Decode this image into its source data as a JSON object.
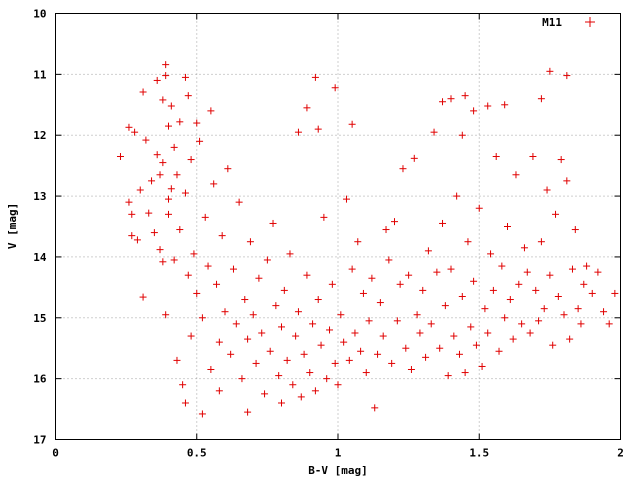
{
  "chart_data": {
    "type": "scatter",
    "title": "",
    "xlabel": "B-V [mag]",
    "ylabel": "V [mag]",
    "xlim": [
      0,
      2
    ],
    "ylim": [
      17,
      10
    ],
    "y_inverted": true,
    "grid": true,
    "legend_position": "top-right",
    "x_ticks": [
      "0",
      "0.5",
      "1",
      "1.5",
      "2"
    ],
    "y_ticks": [
      "10",
      "11",
      "12",
      "13",
      "14",
      "15",
      "16",
      "17"
    ],
    "marker_color": "#e00000",
    "series": [
      {
        "name": "M11",
        "marker": "plus",
        "points": [
          [
            0.23,
            12.35
          ],
          [
            0.26,
            11.87
          ],
          [
            0.28,
            11.95
          ],
          [
            0.26,
            13.1
          ],
          [
            0.27,
            13.3
          ],
          [
            0.27,
            13.65
          ],
          [
            0.29,
            13.72
          ],
          [
            0.3,
            12.9
          ],
          [
            0.31,
            11.29
          ],
          [
            0.31,
            14.66
          ],
          [
            0.32,
            12.08
          ],
          [
            0.33,
            13.28
          ],
          [
            0.34,
            12.75
          ],
          [
            0.35,
            13.6
          ],
          [
            0.36,
            12.32
          ],
          [
            0.36,
            11.1
          ],
          [
            0.37,
            12.65
          ],
          [
            0.37,
            13.88
          ],
          [
            0.38,
            11.42
          ],
          [
            0.38,
            12.45
          ],
          [
            0.38,
            14.08
          ],
          [
            0.39,
            10.84
          ],
          [
            0.39,
            11.02
          ],
          [
            0.39,
            14.95
          ],
          [
            0.4,
            11.85
          ],
          [
            0.4,
            13.3
          ],
          [
            0.4,
            13.05
          ],
          [
            0.41,
            12.88
          ],
          [
            0.41,
            11.52
          ],
          [
            0.42,
            12.2
          ],
          [
            0.42,
            14.05
          ],
          [
            0.43,
            12.65
          ],
          [
            0.43,
            15.7
          ],
          [
            0.44,
            11.78
          ],
          [
            0.44,
            13.55
          ],
          [
            0.45,
            16.1
          ],
          [
            0.46,
            16.4
          ],
          [
            0.46,
            11.05
          ],
          [
            0.46,
            12.95
          ],
          [
            0.47,
            11.35
          ],
          [
            0.47,
            14.3
          ],
          [
            0.48,
            15.3
          ],
          [
            0.48,
            12.4
          ],
          [
            0.49,
            13.95
          ],
          [
            0.5,
            11.8
          ],
          [
            0.5,
            14.6
          ],
          [
            0.51,
            12.1
          ],
          [
            0.52,
            15.0
          ],
          [
            0.52,
            16.58
          ],
          [
            0.53,
            13.35
          ],
          [
            0.54,
            14.15
          ],
          [
            0.55,
            11.6
          ],
          [
            0.55,
            15.85
          ],
          [
            0.56,
            12.8
          ],
          [
            0.57,
            14.45
          ],
          [
            0.58,
            15.4
          ],
          [
            0.58,
            16.2
          ],
          [
            0.59,
            13.65
          ],
          [
            0.6,
            14.9
          ],
          [
            0.61,
            12.55
          ],
          [
            0.62,
            15.6
          ],
          [
            0.63,
            14.2
          ],
          [
            0.64,
            15.1
          ],
          [
            0.65,
            13.1
          ],
          [
            0.66,
            16.0
          ],
          [
            0.67,
            14.7
          ],
          [
            0.68,
            15.35
          ],
          [
            0.68,
            16.55
          ],
          [
            0.69,
            13.75
          ],
          [
            0.7,
            14.95
          ],
          [
            0.71,
            15.75
          ],
          [
            0.72,
            14.35
          ],
          [
            0.73,
            15.25
          ],
          [
            0.74,
            16.25
          ],
          [
            0.75,
            14.05
          ],
          [
            0.76,
            15.55
          ],
          [
            0.77,
            13.45
          ],
          [
            0.78,
            14.8
          ],
          [
            0.79,
            15.95
          ],
          [
            0.8,
            15.15
          ],
          [
            0.8,
            16.4
          ],
          [
            0.81,
            14.55
          ],
          [
            0.82,
            15.7
          ],
          [
            0.83,
            13.95
          ],
          [
            0.84,
            16.1
          ],
          [
            0.85,
            15.3
          ],
          [
            0.86,
            11.95
          ],
          [
            0.86,
            14.9
          ],
          [
            0.87,
            16.3
          ],
          [
            0.88,
            15.6
          ],
          [
            0.89,
            11.55
          ],
          [
            0.89,
            14.3
          ],
          [
            0.9,
            15.9
          ],
          [
            0.91,
            15.1
          ],
          [
            0.92,
            11.05
          ],
          [
            0.92,
            16.2
          ],
          [
            0.93,
            14.7
          ],
          [
            0.93,
            11.9
          ],
          [
            0.94,
            15.45
          ],
          [
            0.95,
            13.35
          ],
          [
            0.96,
            16.0
          ],
          [
            0.97,
            15.2
          ],
          [
            0.98,
            14.45
          ],
          [
            0.99,
            15.75
          ],
          [
            0.99,
            11.22
          ],
          [
            1.0,
            16.1
          ],
          [
            1.01,
            14.95
          ],
          [
            1.02,
            15.4
          ],
          [
            1.03,
            13.05
          ],
          [
            1.04,
            15.7
          ],
          [
            1.05,
            11.82
          ],
          [
            1.05,
            14.2
          ],
          [
            1.06,
            15.25
          ],
          [
            1.07,
            13.75
          ],
          [
            1.08,
            15.55
          ],
          [
            1.09,
            14.6
          ],
          [
            1.1,
            15.9
          ],
          [
            1.11,
            15.05
          ],
          [
            1.12,
            14.35
          ],
          [
            1.13,
            16.48
          ],
          [
            1.14,
            15.6
          ],
          [
            1.15,
            14.75
          ],
          [
            1.16,
            15.3
          ],
          [
            1.17,
            13.55
          ],
          [
            1.18,
            14.05
          ],
          [
            1.19,
            15.75
          ],
          [
            1.2,
            13.42
          ],
          [
            1.21,
            15.05
          ],
          [
            1.22,
            14.45
          ],
          [
            1.23,
            12.55
          ],
          [
            1.24,
            15.5
          ],
          [
            1.25,
            14.3
          ],
          [
            1.26,
            15.85
          ],
          [
            1.27,
            12.38
          ],
          [
            1.28,
            14.95
          ],
          [
            1.29,
            15.25
          ],
          [
            1.3,
            14.55
          ],
          [
            1.31,
            15.65
          ],
          [
            1.32,
            13.9
          ],
          [
            1.33,
            15.1
          ],
          [
            1.34,
            11.95
          ],
          [
            1.35,
            14.25
          ],
          [
            1.36,
            15.5
          ],
          [
            1.37,
            11.45
          ],
          [
            1.37,
            13.45
          ],
          [
            1.38,
            14.8
          ],
          [
            1.39,
            15.95
          ],
          [
            1.4,
            11.4
          ],
          [
            1.4,
            14.2
          ],
          [
            1.41,
            15.3
          ],
          [
            1.42,
            13.0
          ],
          [
            1.43,
            15.6
          ],
          [
            1.44,
            12.0
          ],
          [
            1.44,
            14.65
          ],
          [
            1.45,
            11.35
          ],
          [
            1.45,
            15.9
          ],
          [
            1.46,
            13.75
          ],
          [
            1.47,
            15.15
          ],
          [
            1.48,
            11.6
          ],
          [
            1.48,
            14.4
          ],
          [
            1.49,
            15.45
          ],
          [
            1.5,
            13.2
          ],
          [
            1.51,
            15.8
          ],
          [
            1.52,
            14.85
          ],
          [
            1.53,
            11.52
          ],
          [
            1.53,
            15.25
          ],
          [
            1.54,
            13.95
          ],
          [
            1.55,
            14.55
          ],
          [
            1.56,
            12.35
          ],
          [
            1.57,
            15.55
          ],
          [
            1.58,
            14.15
          ],
          [
            1.59,
            11.5
          ],
          [
            1.59,
            15.0
          ],
          [
            1.6,
            13.5
          ],
          [
            1.61,
            14.7
          ],
          [
            1.62,
            15.35
          ],
          [
            1.63,
            12.65
          ],
          [
            1.64,
            14.45
          ],
          [
            1.65,
            15.1
          ],
          [
            1.66,
            13.85
          ],
          [
            1.67,
            14.25
          ],
          [
            1.68,
            15.25
          ],
          [
            1.69,
            12.35
          ],
          [
            1.7,
            14.55
          ],
          [
            1.71,
            15.05
          ],
          [
            1.72,
            11.4
          ],
          [
            1.72,
            13.75
          ],
          [
            1.73,
            14.85
          ],
          [
            1.74,
            12.9
          ],
          [
            1.75,
            10.95
          ],
          [
            1.75,
            14.3
          ],
          [
            1.76,
            15.45
          ],
          [
            1.77,
            13.3
          ],
          [
            1.78,
            14.65
          ],
          [
            1.79,
            12.4
          ],
          [
            1.8,
            14.95
          ],
          [
            1.81,
            11.02
          ],
          [
            1.81,
            12.75
          ],
          [
            1.82,
            15.35
          ],
          [
            1.83,
            14.2
          ],
          [
            1.84,
            13.55
          ],
          [
            1.85,
            14.85
          ],
          [
            1.86,
            15.1
          ],
          [
            1.87,
            14.45
          ],
          [
            1.88,
            14.15
          ],
          [
            1.9,
            14.6
          ],
          [
            1.92,
            14.25
          ],
          [
            1.94,
            14.9
          ],
          [
            1.96,
            15.1
          ],
          [
            1.98,
            14.6
          ]
        ]
      }
    ]
  }
}
